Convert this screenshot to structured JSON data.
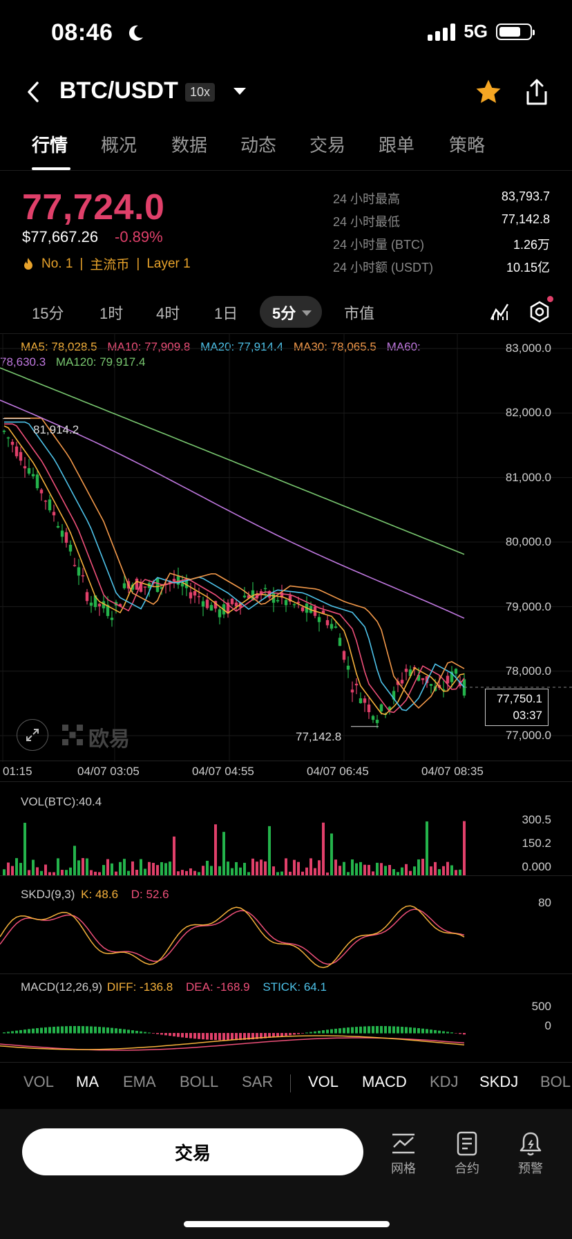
{
  "status": {
    "time": "08:46",
    "network": "5G"
  },
  "header": {
    "pair": "BTC/USDT",
    "leverage": "10x"
  },
  "tabs": [
    "行情",
    "概况",
    "数据",
    "动态",
    "交易",
    "跟单",
    "策略"
  ],
  "ticker": {
    "last_price": "77,724.0",
    "usd_price": "$77,667.26",
    "change": "-0.89%",
    "rank": "No. 1",
    "tag1": "主流币",
    "tag2": "Layer 1",
    "stats": [
      {
        "label": "24 小时最高",
        "value": "83,793.7"
      },
      {
        "label": "24 小时最低",
        "value": "77,142.8"
      },
      {
        "label": "24 小时量 (BTC)",
        "value": "1.26万"
      },
      {
        "label": "24 小时额 (USDT)",
        "value": "10.15亿"
      }
    ]
  },
  "periods": [
    "15分",
    "1时",
    "4时",
    "1日",
    "5分",
    "市值"
  ],
  "ma_legend": {
    "ma5": "MA5: 78,028.5",
    "ma10": "MA10: 77,909.8",
    "ma20": "MA20: 77,914.4",
    "ma30": "MA30: 78,065.5",
    "ma60": "MA60:",
    "ma60_val": "78,630.3",
    "ma120": "MA120: 79,917.4"
  },
  "colors": {
    "up": "#24b34b",
    "down": "#e0406a",
    "ma5": "#f7b23b",
    "ma10": "#f0507a",
    "ma20": "#4ec3ea",
    "ma30": "#f59a4a",
    "ma60": "#c078e0",
    "ma120": "#79c870"
  },
  "chart": {
    "y_ticks": [
      "83,000.0",
      "82,000.0",
      "81,000.0",
      "80,000.0",
      "79,000.0",
      "78,000.0",
      "77,000.0"
    ],
    "x_ticks": [
      "01:15",
      "04/07 03:05",
      "04/07 04:55",
      "04/07 06:45",
      "04/07 08:35"
    ],
    "high_label": "81,914.2",
    "low_label": "77,142.8",
    "current_price": "77,750.1",
    "countdown": "03:37",
    "watermark": "欧易"
  },
  "vol_panel": {
    "label": "VOL(BTC):40.4",
    "ticks": [
      "300.5",
      "150.2",
      "0.000"
    ]
  },
  "skdj_panel": {
    "label": "SKDJ(9,3)",
    "k": "K: 48.6",
    "d": "D: 52.6",
    "tick": "80"
  },
  "macd_panel": {
    "label": "MACD(12,26,9)",
    "diff": "DIFF: -136.8",
    "dea": "DEA: -168.9",
    "stick": "STICK: 64.1",
    "ticks": [
      "500",
      "0"
    ]
  },
  "indicator_tabs": [
    "VOL",
    "MA",
    "EMA",
    "BOLL",
    "SAR",
    "VOL",
    "MACD",
    "KDJ",
    "SKDJ",
    "BOL"
  ],
  "bottom": {
    "trade": "交易",
    "grid": "网格",
    "contract": "合约",
    "alert": "预警"
  }
}
